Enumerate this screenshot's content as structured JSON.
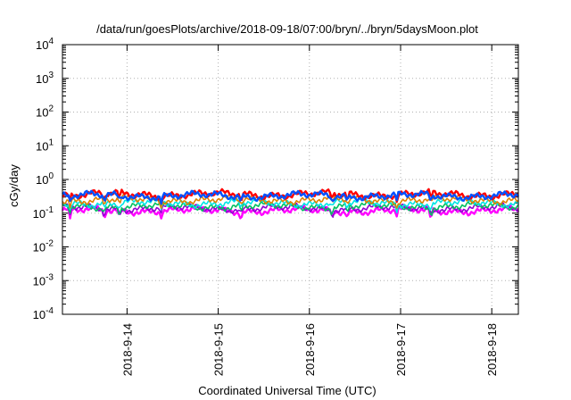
{
  "chart_data": {
    "type": "line",
    "title": "/data/run/goesPlots/archive/2018-09-18/07:00/bryn/../bryn/5daysMoon.plot",
    "xlabel": "Coordinated Universal Time (UTC)",
    "ylabel": "cGy/day",
    "yscale": "log",
    "ylim": [
      0.0001,
      10000
    ],
    "y_ticks": [
      {
        "base": "10",
        "exp": "-4",
        "value": 0.0001
      },
      {
        "base": "10",
        "exp": "-3",
        "value": 0.001
      },
      {
        "base": "10",
        "exp": "-2",
        "value": 0.01
      },
      {
        "base": "10",
        "exp": "-1",
        "value": 0.1
      },
      {
        "base": "10",
        "exp": "0",
        "value": 1
      },
      {
        "base": "10",
        "exp": "1",
        "value": 10
      },
      {
        "base": "10",
        "exp": "2",
        "value": 100
      },
      {
        "base": "10",
        "exp": "3",
        "value": 1000
      },
      {
        "base": "10",
        "exp": "4",
        "value": 10000
      }
    ],
    "xlim": [
      "2018-09-13 07:00",
      "2018-09-18 07:00"
    ],
    "x_ticks": [
      "2018-9-14",
      "2018-9-15",
      "2018-9-16",
      "2018-9-17",
      "2018-9-18"
    ],
    "grid": true,
    "legend": "none",
    "colors": {
      "magenta": "#ff00ff",
      "purple": "#9400d3",
      "green": "#00c060",
      "cyan": "#00e5e5",
      "orange": "#e08000",
      "red": "#ff0000",
      "blue": "#0050ff"
    },
    "series": [
      {
        "color": "magenta",
        "base_value": 0.12,
        "dips": [
          {
            "x": "2018-09-13 09:00",
            "y": 0.07
          },
          {
            "x": "2018-09-13 18:00",
            "y": 0.06
          },
          {
            "x": "2018-09-13 22:00",
            "y": 0.07
          },
          {
            "x": "2018-09-14 09:00",
            "y": 0.07
          },
          {
            "x": "2018-09-15 06:00",
            "y": 0.06
          },
          {
            "x": "2018-09-16 06:00",
            "y": 0.07
          },
          {
            "x": "2018-09-16 10:00",
            "y": 0.07
          },
          {
            "x": "2018-09-16 23:00",
            "y": 0.08
          },
          {
            "x": "2018-09-17 08:00",
            "y": 0.05
          }
        ]
      },
      {
        "color": "purple",
        "base_value": 0.14
      },
      {
        "color": "green",
        "base_value": 0.16
      },
      {
        "color": "cyan",
        "base_value": 0.2
      },
      {
        "color": "orange",
        "base_value": 0.25
      },
      {
        "color": "red",
        "base_value": 0.36
      },
      {
        "color": "blue",
        "base_value": 0.33
      }
    ]
  }
}
